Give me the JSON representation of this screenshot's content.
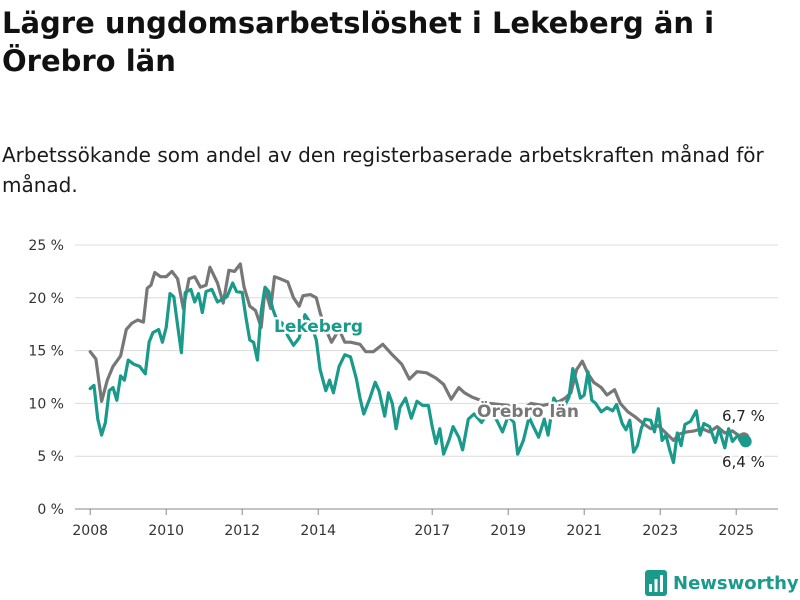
{
  "title": "Lägre ungdomsarbetslöshet i Lekeberg än i Örebro län",
  "subtitle": "Arbetssökande som andel av den registerbaserade arbetskraften månad för månad.",
  "brand": {
    "name": "Newsworthy",
    "icon": "bar-chart-logo-icon",
    "color": "#1a9a8a"
  },
  "chart_data": {
    "type": "line",
    "x_unit": "year",
    "xlim": [
      2007.6,
      2026.1
    ],
    "ylim": [
      0,
      25
    ],
    "y_ticks": [
      0,
      5,
      10,
      15,
      20,
      25
    ],
    "y_tick_labels": [
      "0 %",
      "5 %",
      "10 %",
      "15 %",
      "20 %",
      "25 %"
    ],
    "x_ticks": [
      2008,
      2010,
      2012,
      2014,
      2017,
      2019,
      2021,
      2023,
      2025
    ],
    "x_tick_labels": [
      "2008",
      "2010",
      "2012",
      "2014",
      "2017",
      "2019",
      "2021",
      "2023",
      "2025"
    ],
    "grid": "horizontal",
    "legend": "inline",
    "series": [
      {
        "name": "Örebro län",
        "color": "#777777",
        "end_label": "6,7 %",
        "points": [
          [
            2008.0,
            14.9
          ],
          [
            2008.15,
            14.2
          ],
          [
            2008.3,
            10.2
          ],
          [
            2008.45,
            12.2
          ],
          [
            2008.6,
            13.5
          ],
          [
            2008.8,
            14.5
          ],
          [
            2008.95,
            17.0
          ],
          [
            2009.1,
            17.6
          ],
          [
            2009.25,
            17.9
          ],
          [
            2009.4,
            17.7
          ],
          [
            2009.5,
            20.9
          ],
          [
            2009.6,
            21.2
          ],
          [
            2009.7,
            22.4
          ],
          [
            2009.85,
            22.0
          ],
          [
            2010.0,
            22.0
          ],
          [
            2010.15,
            22.5
          ],
          [
            2010.3,
            21.8
          ],
          [
            2010.45,
            19.0
          ],
          [
            2010.6,
            21.8
          ],
          [
            2010.75,
            22.0
          ],
          [
            2010.9,
            21.0
          ],
          [
            2011.05,
            21.2
          ],
          [
            2011.15,
            22.9
          ],
          [
            2011.35,
            21.4
          ],
          [
            2011.5,
            19.5
          ],
          [
            2011.65,
            22.6
          ],
          [
            2011.8,
            22.5
          ],
          [
            2011.95,
            23.2
          ],
          [
            2012.05,
            21.0
          ],
          [
            2012.2,
            19.2
          ],
          [
            2012.35,
            18.8
          ],
          [
            2012.5,
            17.2
          ],
          [
            2012.6,
            20.8
          ],
          [
            2012.75,
            19.0
          ],
          [
            2012.85,
            22.0
          ],
          [
            2013.0,
            21.8
          ],
          [
            2013.2,
            21.5
          ],
          [
            2013.35,
            20.0
          ],
          [
            2013.5,
            19.2
          ],
          [
            2013.6,
            20.2
          ],
          [
            2013.8,
            20.3
          ],
          [
            2013.95,
            20.0
          ],
          [
            2014.05,
            18.6
          ],
          [
            2014.2,
            17.0
          ],
          [
            2014.35,
            15.8
          ],
          [
            2014.55,
            17.0
          ],
          [
            2014.7,
            15.8
          ],
          [
            2014.85,
            15.8
          ],
          [
            2015.1,
            15.6
          ],
          [
            2015.25,
            14.9
          ],
          [
            2015.45,
            14.9
          ],
          [
            2015.7,
            15.6
          ],
          [
            2015.95,
            14.6
          ],
          [
            2016.2,
            13.7
          ],
          [
            2016.4,
            12.3
          ],
          [
            2016.6,
            13.0
          ],
          [
            2016.85,
            12.9
          ],
          [
            2017.1,
            12.4
          ],
          [
            2017.3,
            11.8
          ],
          [
            2017.5,
            10.4
          ],
          [
            2017.7,
            11.5
          ],
          [
            2017.85,
            11.0
          ],
          [
            2018.05,
            10.6
          ],
          [
            2018.5,
            10.0
          ],
          [
            2019.0,
            9.8
          ],
          [
            2019.3,
            9.2
          ],
          [
            2019.6,
            10.0
          ],
          [
            2019.9,
            9.8
          ],
          [
            2020.15,
            10.0
          ],
          [
            2020.35,
            10.2
          ],
          [
            2020.5,
            10.5
          ],
          [
            2020.65,
            11.0
          ],
          [
            2020.8,
            13.2
          ],
          [
            2020.95,
            14.0
          ],
          [
            2021.1,
            12.8
          ],
          [
            2021.25,
            12.0
          ],
          [
            2021.45,
            11.5
          ],
          [
            2021.6,
            10.8
          ],
          [
            2021.8,
            11.3
          ],
          [
            2021.95,
            10.0
          ],
          [
            2022.15,
            9.2
          ],
          [
            2022.35,
            8.7
          ],
          [
            2022.55,
            8.1
          ],
          [
            2022.75,
            7.6
          ],
          [
            2022.95,
            7.9
          ],
          [
            2023.15,
            7.2
          ],
          [
            2023.35,
            6.5
          ],
          [
            2023.5,
            7.1
          ],
          [
            2023.7,
            7.3
          ],
          [
            2023.9,
            7.4
          ],
          [
            2024.1,
            7.6
          ],
          [
            2024.3,
            7.3
          ],
          [
            2024.5,
            7.8
          ],
          [
            2024.7,
            7.2
          ],
          [
            2024.9,
            7.4
          ],
          [
            2025.05,
            7.0
          ],
          [
            2025.2,
            6.7
          ]
        ]
      },
      {
        "name": "Lekeberg",
        "color": "#1a9a8a",
        "end_label": "6,4 %",
        "points": [
          [
            2008.0,
            11.4
          ],
          [
            2008.1,
            11.7
          ],
          [
            2008.2,
            8.5
          ],
          [
            2008.3,
            7.0
          ],
          [
            2008.4,
            8.2
          ],
          [
            2008.5,
            11.2
          ],
          [
            2008.6,
            11.5
          ],
          [
            2008.7,
            10.3
          ],
          [
            2008.8,
            12.6
          ],
          [
            2008.9,
            12.2
          ],
          [
            2009.0,
            14.1
          ],
          [
            2009.15,
            13.7
          ],
          [
            2009.3,
            13.5
          ],
          [
            2009.45,
            12.8
          ],
          [
            2009.55,
            15.8
          ],
          [
            2009.65,
            16.7
          ],
          [
            2009.8,
            17.0
          ],
          [
            2009.9,
            15.8
          ],
          [
            2010.0,
            17.2
          ],
          [
            2010.1,
            20.4
          ],
          [
            2010.2,
            20.1
          ],
          [
            2010.3,
            17.4
          ],
          [
            2010.4,
            14.8
          ],
          [
            2010.5,
            20.5
          ],
          [
            2010.65,
            20.8
          ],
          [
            2010.75,
            19.6
          ],
          [
            2010.85,
            20.4
          ],
          [
            2010.95,
            18.6
          ],
          [
            2011.05,
            20.6
          ],
          [
            2011.2,
            20.8
          ],
          [
            2011.35,
            19.6
          ],
          [
            2011.45,
            19.8
          ],
          [
            2011.6,
            20.1
          ],
          [
            2011.75,
            21.4
          ],
          [
            2011.85,
            20.6
          ],
          [
            2012.0,
            20.5
          ],
          [
            2012.1,
            18.1
          ],
          [
            2012.2,
            16.0
          ],
          [
            2012.3,
            15.8
          ],
          [
            2012.4,
            14.1
          ],
          [
            2012.5,
            18.7
          ],
          [
            2012.6,
            21.0
          ],
          [
            2012.7,
            20.6
          ],
          [
            2012.8,
            19.0
          ],
          [
            2012.9,
            18.0
          ],
          [
            2013.05,
            17.6
          ],
          [
            2013.2,
            16.4
          ],
          [
            2013.35,
            15.5
          ],
          [
            2013.5,
            16.2
          ],
          [
            2013.65,
            18.4
          ],
          [
            2013.8,
            17.6
          ],
          [
            2013.95,
            16.0
          ],
          [
            2014.05,
            13.2
          ],
          [
            2014.2,
            11.2
          ],
          [
            2014.3,
            12.2
          ],
          [
            2014.4,
            11.0
          ],
          [
            2014.55,
            13.5
          ],
          [
            2014.7,
            14.6
          ],
          [
            2014.85,
            14.4
          ],
          [
            2015.0,
            12.4
          ],
          [
            2015.1,
            10.5
          ],
          [
            2015.2,
            9.0
          ],
          [
            2015.35,
            10.4
          ],
          [
            2015.5,
            12.0
          ],
          [
            2015.6,
            11.2
          ],
          [
            2015.75,
            8.8
          ],
          [
            2015.85,
            11.0
          ],
          [
            2015.95,
            10.0
          ],
          [
            2016.05,
            7.6
          ],
          [
            2016.15,
            9.6
          ],
          [
            2016.3,
            10.5
          ],
          [
            2016.45,
            8.6
          ],
          [
            2016.6,
            10.2
          ],
          [
            2016.75,
            9.8
          ],
          [
            2016.9,
            9.8
          ],
          [
            2017.0,
            7.8
          ],
          [
            2017.1,
            6.2
          ],
          [
            2017.2,
            7.6
          ],
          [
            2017.3,
            5.2
          ],
          [
            2017.45,
            6.6
          ],
          [
            2017.55,
            7.8
          ],
          [
            2017.7,
            6.8
          ],
          [
            2017.8,
            5.6
          ],
          [
            2017.95,
            8.5
          ],
          [
            2018.1,
            9.0
          ],
          [
            2018.3,
            8.2
          ],
          [
            2018.5,
            9.3
          ],
          [
            2018.7,
            8.4
          ],
          [
            2018.85,
            7.3
          ],
          [
            2019.0,
            8.8
          ],
          [
            2019.15,
            8.2
          ],
          [
            2019.25,
            5.2
          ],
          [
            2019.4,
            6.5
          ],
          [
            2019.55,
            8.7
          ],
          [
            2019.65,
            7.9
          ],
          [
            2019.8,
            6.8
          ],
          [
            2019.95,
            8.5
          ],
          [
            2020.05,
            7.0
          ],
          [
            2020.2,
            10.5
          ],
          [
            2020.35,
            9.6
          ],
          [
            2020.5,
            9.9
          ],
          [
            2020.6,
            10.6
          ],
          [
            2020.7,
            13.3
          ],
          [
            2020.8,
            12.0
          ],
          [
            2020.9,
            10.5
          ],
          [
            2021.0,
            10.8
          ],
          [
            2021.1,
            13.0
          ],
          [
            2021.2,
            10.3
          ],
          [
            2021.3,
            10.0
          ],
          [
            2021.45,
            9.2
          ],
          [
            2021.6,
            9.6
          ],
          [
            2021.75,
            9.3
          ],
          [
            2021.85,
            9.9
          ],
          [
            2022.0,
            8.1
          ],
          [
            2022.1,
            7.5
          ],
          [
            2022.2,
            8.4
          ],
          [
            2022.3,
            5.4
          ],
          [
            2022.4,
            6.0
          ],
          [
            2022.5,
            7.6
          ],
          [
            2022.6,
            8.5
          ],
          [
            2022.75,
            8.4
          ],
          [
            2022.85,
            7.3
          ],
          [
            2022.95,
            9.5
          ],
          [
            2023.05,
            6.5
          ],
          [
            2023.15,
            7.0
          ],
          [
            2023.25,
            5.6
          ],
          [
            2023.35,
            4.4
          ],
          [
            2023.45,
            7.2
          ],
          [
            2023.55,
            6.0
          ],
          [
            2023.65,
            8.0
          ],
          [
            2023.8,
            8.3
          ],
          [
            2023.95,
            9.3
          ],
          [
            2024.05,
            7.0
          ],
          [
            2024.15,
            8.1
          ],
          [
            2024.3,
            7.8
          ],
          [
            2024.45,
            6.3
          ],
          [
            2024.55,
            7.6
          ],
          [
            2024.7,
            5.8
          ],
          [
            2024.8,
            7.6
          ],
          [
            2024.9,
            6.4
          ],
          [
            2025.05,
            7.0
          ],
          [
            2025.15,
            6.4
          ],
          [
            2025.25,
            6.4
          ]
        ]
      }
    ]
  }
}
